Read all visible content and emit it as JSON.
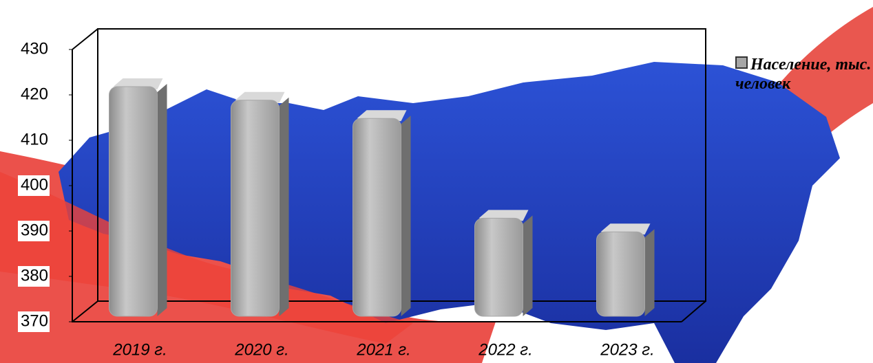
{
  "chart_data": {
    "type": "bar3d",
    "categories": [
      "2019 г.",
      "2020 г.",
      "2021 г.",
      "2022 г.",
      "2023 г."
    ],
    "series": [
      {
        "name": "Население, тыс. человек",
        "color": "#a6a6a6",
        "values": [
          420,
          417,
          413,
          391,
          388
        ]
      }
    ],
    "ylim": [
      370,
      430
    ],
    "yticks": [
      370,
      380,
      390,
      400,
      410,
      420,
      430
    ],
    "legend": "right",
    "grid": false
  }
}
